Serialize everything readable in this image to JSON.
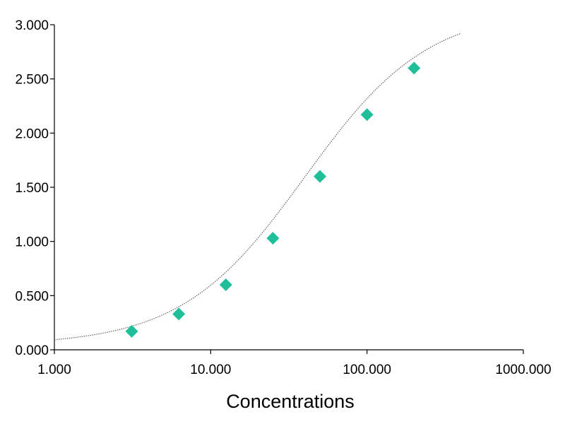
{
  "chart_data": {
    "type": "scatter",
    "title": "",
    "xlabel": "Concentrations",
    "ylabel": "",
    "x_scale": "log",
    "xlim": [
      1,
      1000
    ],
    "ylim": [
      0,
      3
    ],
    "grid": false,
    "x_ticks": [
      {
        "value": 1,
        "label": "1.000"
      },
      {
        "value": 10,
        "label": "10.000"
      },
      {
        "value": 100,
        "label": "100.000"
      },
      {
        "value": 1000,
        "label": "1000.000"
      }
    ],
    "y_ticks": [
      {
        "value": 0,
        "label": "0.000"
      },
      {
        "value": 0.5,
        "label": "0.500"
      },
      {
        "value": 1,
        "label": "1.000"
      },
      {
        "value": 1.5,
        "label": "1.500"
      },
      {
        "value": 2,
        "label": "2.000"
      },
      {
        "value": 2.5,
        "label": "2.500"
      },
      {
        "value": 3,
        "label": "3.000"
      }
    ],
    "series": [
      {
        "kind": "points",
        "marker": "diamond",
        "color": "#1fbf9a",
        "x": [
          3.125,
          6.25,
          12.5,
          25,
          50,
          100,
          200
        ],
        "y": [
          0.17,
          0.33,
          0.6,
          1.03,
          1.6,
          2.17,
          2.6
        ]
      },
      {
        "kind": "fit-curve",
        "line_style": "dotted",
        "color": "#555555",
        "x_range": [
          1,
          400
        ],
        "model": "4PL",
        "params": {
          "bottom": 0.04,
          "top": 3.15,
          "ec50": 40,
          "hill": 1.1
        }
      }
    ]
  }
}
